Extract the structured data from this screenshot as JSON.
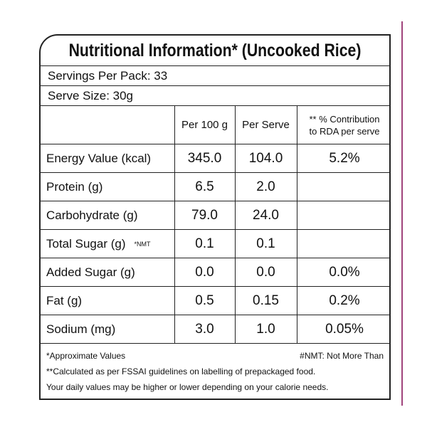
{
  "title": "Nutritional Information* (Uncooked Rice)",
  "servings": "Servings Per Pack: 33",
  "serve_size": "Serve Size: 30g",
  "table": {
    "headers": [
      "Per 100 g",
      "Per Serve",
      [
        "** % Contribution",
        "to RDA per serve"
      ]
    ],
    "rows": [
      {
        "name": "Energy Value (kcal)",
        "per_100g": "345.0",
        "per_serve": "104.0",
        "rda": "5.2%"
      },
      {
        "name": "Protein (g)",
        "per_100g": "6.5",
        "per_serve": "2.0"
      },
      {
        "name": "Carbohydrate (g)",
        "per_100g": "79.0",
        "per_serve": "24.0"
      },
      {
        "name": "Total Sugar (g)",
        "note": "*NMT",
        "per_100g": "0.1",
        "per_serve": "0.1"
      },
      {
        "name": "Added Sugar (g)",
        "per_100g": "0.0",
        "per_serve": "0.0",
        "rda": "0.0%"
      },
      {
        "name": "Fat (g)",
        "per_100g": "0.5",
        "per_serve": "0.15",
        "rda": "0.2%"
      },
      {
        "name": "Sodium (mg)",
        "per_100g": "3.0",
        "per_serve": "1.0",
        "rda": "0.05%"
      }
    ]
  },
  "footer": {
    "approx": "*Approximate Values",
    "nmt": "#NMT: Not More Than",
    "calc": "**Calculated as per FSSAI guidelines on labelling of prepackaged food.",
    "daily": "Your daily values may be higher or lower depending on your calorie needs."
  }
}
